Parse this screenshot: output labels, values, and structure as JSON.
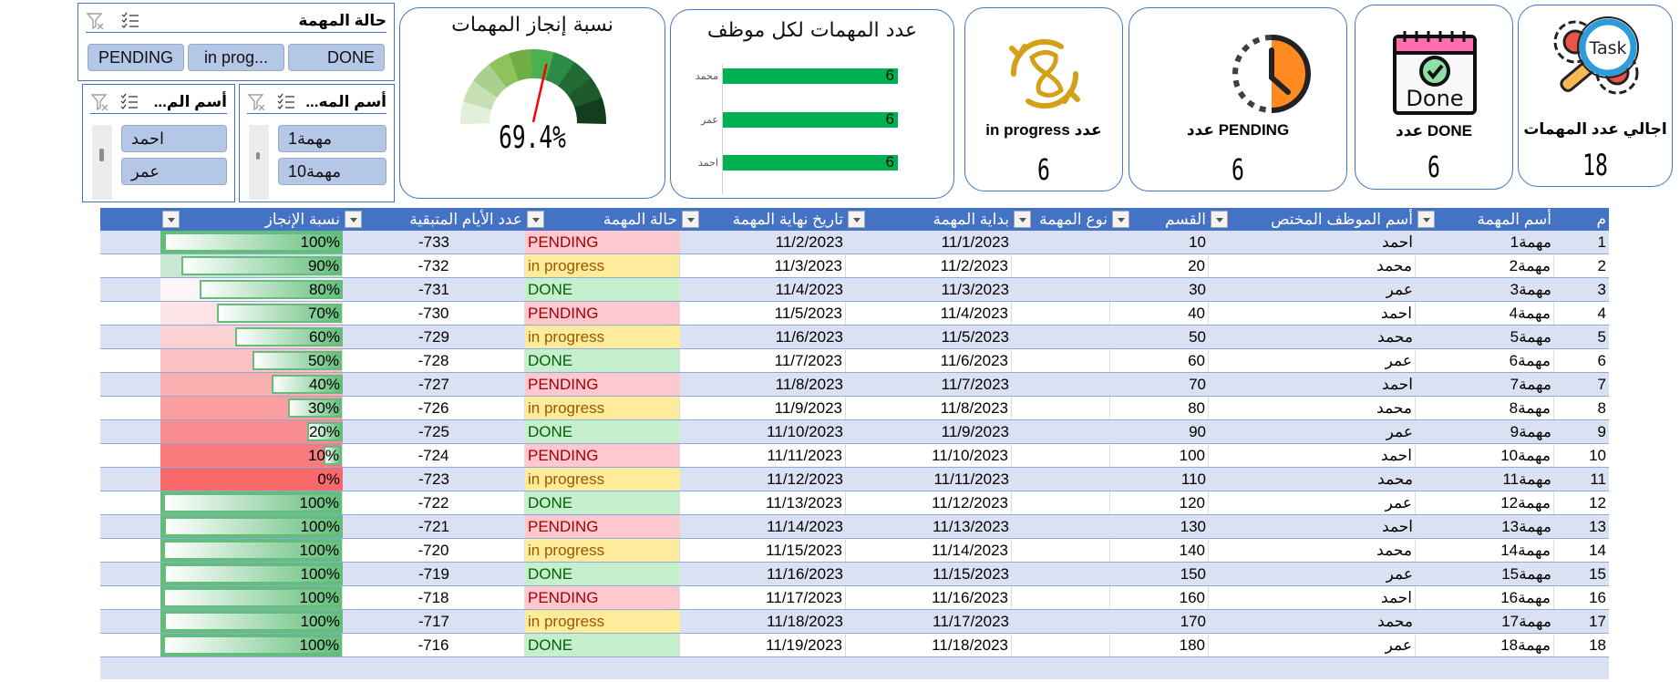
{
  "slicers": {
    "status": {
      "title": "حالة المهمة",
      "items": [
        "PENDING",
        "in prog...",
        "DONE"
      ]
    },
    "employee": {
      "title": "أسم الم...",
      "items": [
        "احمد",
        "عمر"
      ]
    },
    "task": {
      "title": "أسم المه...",
      "items": [
        "مهمة1",
        "مهمة10"
      ]
    }
  },
  "gauge": {
    "title": "نسبة إنجاز المهمات",
    "value": "69.4%",
    "segment_colors": [
      "#e2efda",
      "#c6e0b4",
      "#a9d08e",
      "#8dc35a",
      "#70ad47",
      "#4caf50",
      "#2e8b45",
      "#236b34",
      "#1d5a2b",
      "#143d1e"
    ],
    "needle_color": "#ff0000"
  },
  "chart_data": {
    "type": "bar",
    "title": "عدد المهمات لكل موظف",
    "categories": [
      "محمد",
      "عمر",
      "احمد"
    ],
    "values": [
      6,
      6,
      6
    ],
    "orientation": "horizontal",
    "bar_color": "#00b050",
    "xlabel": "",
    "ylabel": "",
    "grid": false,
    "data_labels": true
  },
  "kpis": {
    "in_progress": {
      "label": "عدد in progress",
      "value": "6"
    },
    "pending": {
      "label": "عدد PENDING",
      "value": "6"
    },
    "done": {
      "label": "عدد DONE",
      "value": "6",
      "icon_text": "Done"
    },
    "total": {
      "label": "اجالي عدد المهمات",
      "value": "18",
      "icon_text": "Task"
    }
  },
  "table": {
    "headers": {
      "num": "م",
      "name": "أسم المهمة",
      "emp": "أسم الموظف المختص",
      "dept": "القسم",
      "type": "نوع المهمة",
      "start": "بداية المهمة",
      "end": "تاريخ نهاية المهمة",
      "status": "حالة المهمة",
      "days": "عدد الأيام المتبقية",
      "pct": "نسبة الإنجاز"
    },
    "rows": [
      {
        "num": "1",
        "name": "مهمة1",
        "emp": "احمد",
        "dept": "10",
        "type": "",
        "start": "11/1/2023",
        "end": "11/2/2023",
        "status": "PENDING",
        "days": "-733",
        "pct": "100%",
        "pct_value": 100
      },
      {
        "num": "2",
        "name": "مهمة2",
        "emp": "محمد",
        "dept": "20",
        "type": "",
        "start": "11/2/2023",
        "end": "11/3/2023",
        "status": "in progress",
        "days": "-732",
        "pct": "90%",
        "pct_value": 90
      },
      {
        "num": "3",
        "name": "مهمة3",
        "emp": "عمر",
        "dept": "30",
        "type": "",
        "start": "11/3/2023",
        "end": "11/4/2023",
        "status": "DONE",
        "days": "-731",
        "pct": "80%",
        "pct_value": 80
      },
      {
        "num": "4",
        "name": "مهمة4",
        "emp": "احمد",
        "dept": "40",
        "type": "",
        "start": "11/4/2023",
        "end": "11/5/2023",
        "status": "PENDING",
        "days": "-730",
        "pct": "70%",
        "pct_value": 70
      },
      {
        "num": "5",
        "name": "مهمة5",
        "emp": "محمد",
        "dept": "50",
        "type": "",
        "start": "11/5/2023",
        "end": "11/6/2023",
        "status": "in progress",
        "days": "-729",
        "pct": "60%",
        "pct_value": 60
      },
      {
        "num": "6",
        "name": "مهمة6",
        "emp": "عمر",
        "dept": "60",
        "type": "",
        "start": "11/6/2023",
        "end": "11/7/2023",
        "status": "DONE",
        "days": "-728",
        "pct": "50%",
        "pct_value": 50
      },
      {
        "num": "7",
        "name": "مهمة7",
        "emp": "احمد",
        "dept": "70",
        "type": "",
        "start": "11/7/2023",
        "end": "11/8/2023",
        "status": "PENDING",
        "days": "-727",
        "pct": "40%",
        "pct_value": 40
      },
      {
        "num": "8",
        "name": "مهمة8",
        "emp": "محمد",
        "dept": "80",
        "type": "",
        "start": "11/8/2023",
        "end": "11/9/2023",
        "status": "in progress",
        "days": "-726",
        "pct": "30%",
        "pct_value": 30
      },
      {
        "num": "9",
        "name": "مهمة9",
        "emp": "عمر",
        "dept": "90",
        "type": "",
        "start": "11/9/2023",
        "end": "11/10/2023",
        "status": "DONE",
        "days": "-725",
        "pct": "20%",
        "pct_value": 20
      },
      {
        "num": "10",
        "name": "مهمة10",
        "emp": "احمد",
        "dept": "100",
        "type": "",
        "start": "11/10/2023",
        "end": "11/11/2023",
        "status": "PENDING",
        "days": "-724",
        "pct": "10%",
        "pct_value": 10
      },
      {
        "num": "11",
        "name": "مهمة11",
        "emp": "محمد",
        "dept": "110",
        "type": "",
        "start": "11/11/2023",
        "end": "11/12/2023",
        "status": "in progress",
        "days": "-723",
        "pct": "0%",
        "pct_value": 0
      },
      {
        "num": "12",
        "name": "مهمة12",
        "emp": "عمر",
        "dept": "120",
        "type": "",
        "start": "11/12/2023",
        "end": "11/13/2023",
        "status": "DONE",
        "days": "-722",
        "pct": "100%",
        "pct_value": 100
      },
      {
        "num": "13",
        "name": "مهمة13",
        "emp": "احمد",
        "dept": "130",
        "type": "",
        "start": "11/13/2023",
        "end": "11/14/2023",
        "status": "PENDING",
        "days": "-721",
        "pct": "100%",
        "pct_value": 100
      },
      {
        "num": "14",
        "name": "مهمة14",
        "emp": "محمد",
        "dept": "140",
        "type": "",
        "start": "11/14/2023",
        "end": "11/15/2023",
        "status": "in progress",
        "days": "-720",
        "pct": "100%",
        "pct_value": 100
      },
      {
        "num": "15",
        "name": "مهمة15",
        "emp": "عمر",
        "dept": "150",
        "type": "",
        "start": "11/15/2023",
        "end": "11/16/2023",
        "status": "DONE",
        "days": "-719",
        "pct": "100%",
        "pct_value": 100
      },
      {
        "num": "16",
        "name": "مهمة16",
        "emp": "احمد",
        "dept": "160",
        "type": "",
        "start": "11/16/2023",
        "end": "11/17/2023",
        "status": "PENDING",
        "days": "-718",
        "pct": "100%",
        "pct_value": 100
      },
      {
        "num": "17",
        "name": "مهمة17",
        "emp": "محمد",
        "dept": "170",
        "type": "",
        "start": "11/17/2023",
        "end": "11/18/2023",
        "status": "in progress",
        "days": "-717",
        "pct": "100%",
        "pct_value": 100
      },
      {
        "num": "18",
        "name": "مهمة18",
        "emp": "عمر",
        "dept": "180",
        "type": "",
        "start": "11/18/2023",
        "end": "11/19/2023",
        "status": "DONE",
        "days": "-716",
        "pct": "100%",
        "pct_value": 100
      }
    ]
  },
  "colors": {
    "accent": "#4472c4",
    "header_bg": "#4472c4",
    "band": "#d9e1f2",
    "pending_bg": "#ffc7ce",
    "pending_fg": "#9c0006",
    "progress_bg": "#ffeb9c",
    "progress_fg": "#9c5700",
    "done_bg": "#c6efce",
    "done_fg": "#006100",
    "databar": "#63be7b"
  }
}
